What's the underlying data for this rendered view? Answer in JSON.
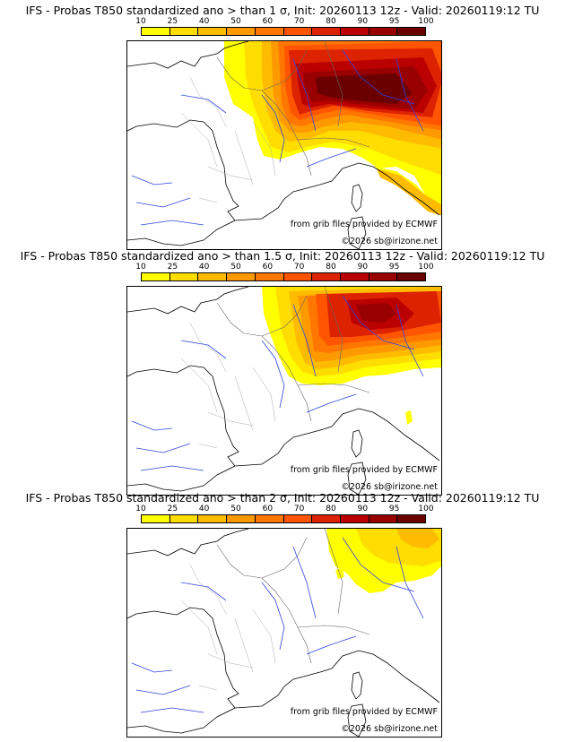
{
  "panels": [
    {
      "title": "IFS - Probas T850  standardized ano > than 1 σ, Init: 20260113 12z - Valid: 20260119:12 TU",
      "source_note": "from grib files provided by ECMWF",
      "copyright": "©2026 sb@irizone.net"
    },
    {
      "title": "IFS - Probas T850  standardized ano > than 1.5 σ, Init: 20260113 12z - Valid: 20260119:12 TU",
      "source_note": "from grib files provided by ECMWF",
      "copyright": "©2026 sb@irizone.net"
    },
    {
      "title": "IFS - Probas T850  standardized ano > than 2 σ, Init: 20260113 12z - Valid: 20260119:12 TU",
      "source_note": "from grib files provided by ECMWF",
      "copyright": "©2026 sb@irizone.net"
    }
  ],
  "colorbar": {
    "ticks": [
      "10",
      "25",
      "40",
      "50",
      "60",
      "70",
      "80",
      "90",
      "95",
      "100"
    ],
    "colors": [
      "#ffff00",
      "#ffdd00",
      "#ffbb00",
      "#ff9900",
      "#ff7700",
      "#ff5500",
      "#dd2200",
      "#bb0000",
      "#990000",
      "#6b0000"
    ]
  }
}
